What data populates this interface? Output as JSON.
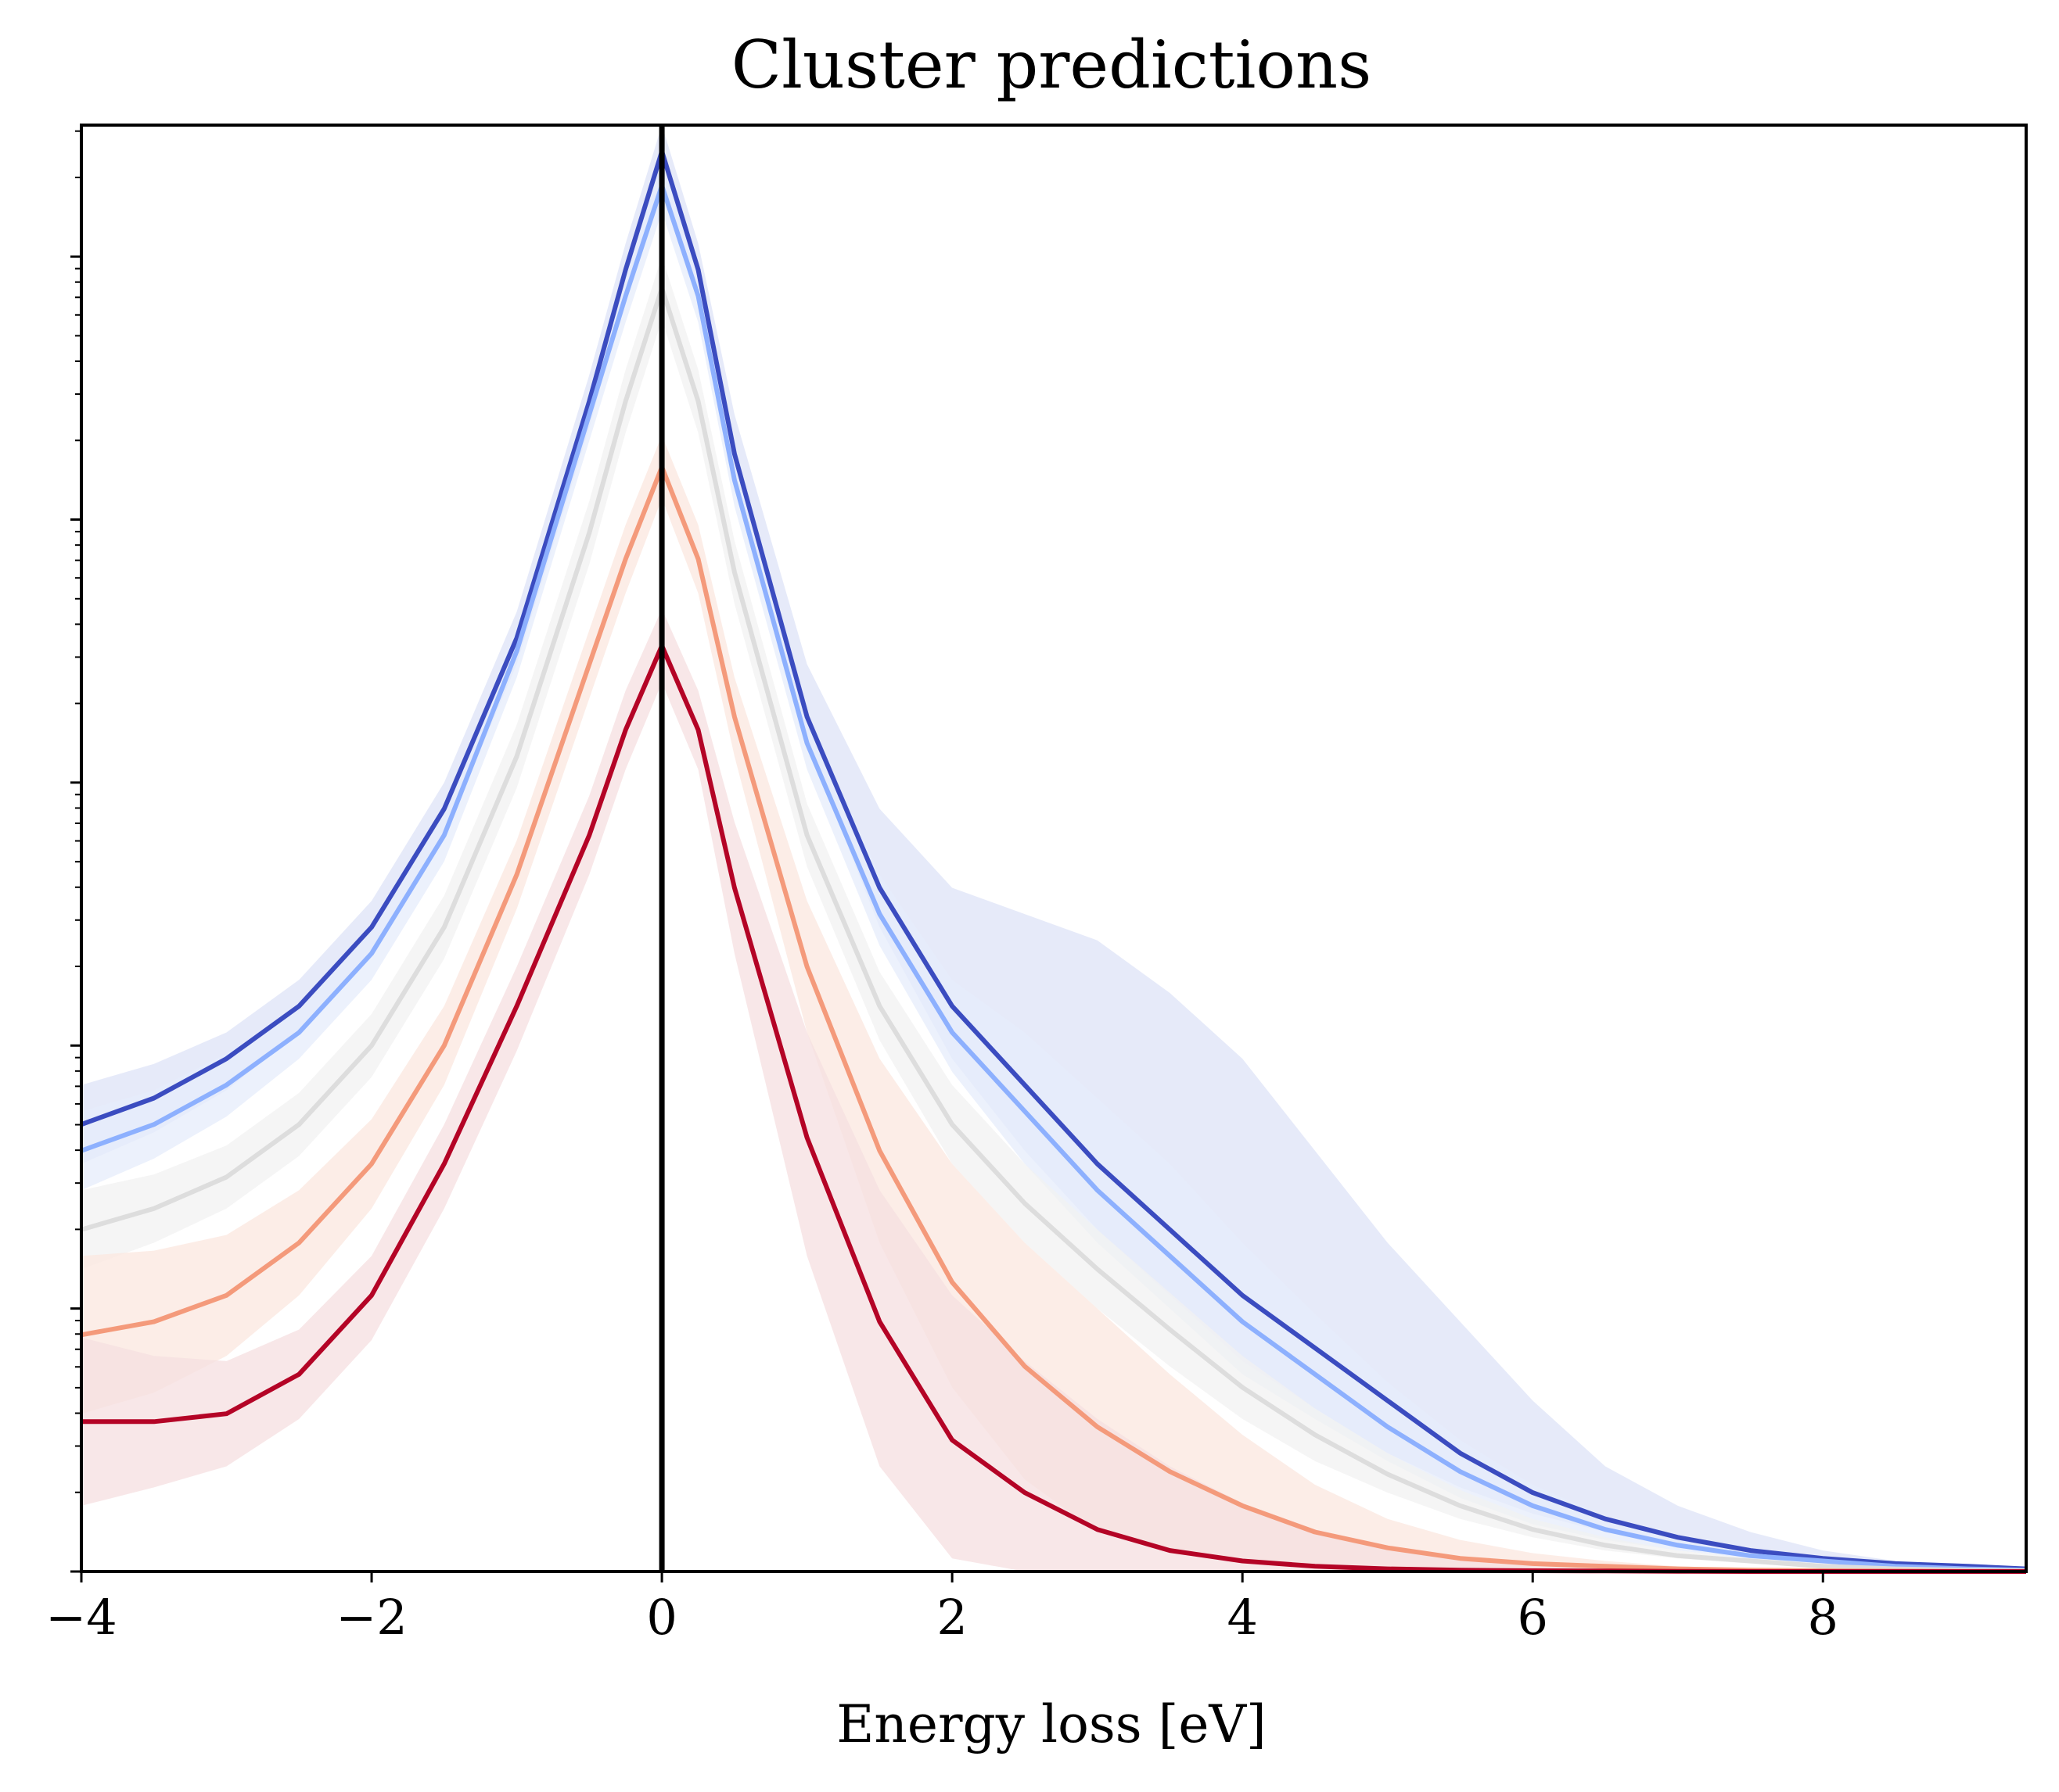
{
  "chart_data": {
    "type": "line",
    "title": "Cluster predictions",
    "xlabel": "Energy loss [eV]",
    "ylabel": "",
    "xlim": [
      -4,
      9.4
    ],
    "y_scale": "log",
    "ylim_decades": [
      0,
      5.5
    ],
    "x_ticks": [
      -4,
      -2,
      0,
      2,
      4,
      6,
      8
    ],
    "x_tick_labels": [
      "−4",
      "−2",
      "0",
      "2",
      "4",
      "6",
      "8"
    ],
    "y_tick_labels_shown": false,
    "vertical_line_x": 0,
    "grid": false,
    "legend": "none",
    "series": [
      {
        "color": "#3b4cc0",
        "band_color": "#dde3f7",
        "x": [
          -4,
          -3.5,
          -3,
          -2.5,
          -2,
          -1.5,
          -1,
          -0.5,
          -0.25,
          0,
          0.25,
          0.5,
          1,
          1.5,
          2,
          2.5,
          3,
          3.5,
          4,
          4.5,
          5,
          5.5,
          6,
          6.5,
          7,
          7.5,
          8,
          8.5,
          9,
          9.4
        ],
        "y": [
          1.7,
          1.8,
          1.95,
          2.15,
          2.45,
          2.9,
          3.55,
          4.45,
          4.95,
          5.4,
          4.95,
          4.25,
          3.25,
          2.6,
          2.15,
          1.85,
          1.55,
          1.3,
          1.05,
          0.85,
          0.65,
          0.45,
          0.3,
          0.2,
          0.13,
          0.08,
          0.05,
          0.03,
          0.02,
          0.01
        ],
        "lo": [
          1.55,
          1.67,
          1.83,
          2.05,
          2.35,
          2.8,
          3.45,
          4.35,
          4.85,
          5.3,
          4.85,
          4.15,
          3.15,
          2.45,
          1.95,
          1.6,
          1.3,
          1.05,
          0.8,
          0.62,
          0.45,
          0.32,
          0.22,
          0.15,
          0.1,
          0.07,
          0.04,
          0.02,
          0.01,
          0.005
        ],
        "hi": [
          1.85,
          1.93,
          2.05,
          2.25,
          2.55,
          3.0,
          3.65,
          4.55,
          5.05,
          5.5,
          5.05,
          4.4,
          3.45,
          2.9,
          2.6,
          2.5,
          2.4,
          2.2,
          1.95,
          1.6,
          1.25,
          0.95,
          0.65,
          0.4,
          0.25,
          0.15,
          0.08,
          0.04,
          0.02,
          0.01
        ]
      },
      {
        "color": "#8db0fe",
        "band_color": "#e5ecfb",
        "x": [
          -4,
          -3.5,
          -3,
          -2.5,
          -2,
          -1.5,
          -1,
          -0.5,
          -0.25,
          0,
          0.25,
          0.5,
          1,
          1.5,
          2,
          2.5,
          3,
          3.5,
          4,
          4.5,
          5,
          5.5,
          6,
          6.5,
          7,
          7.5,
          8,
          8.5,
          9,
          9.4
        ],
        "y": [
          1.6,
          1.7,
          1.85,
          2.05,
          2.35,
          2.8,
          3.5,
          4.4,
          4.85,
          5.27,
          4.85,
          4.15,
          3.15,
          2.5,
          2.05,
          1.75,
          1.45,
          1.2,
          0.95,
          0.75,
          0.55,
          0.38,
          0.25,
          0.16,
          0.1,
          0.06,
          0.04,
          0.02,
          0.01,
          0.005
        ],
        "lo": [
          1.45,
          1.57,
          1.73,
          1.95,
          2.25,
          2.7,
          3.4,
          4.3,
          4.75,
          5.17,
          4.75,
          4.05,
          3.05,
          2.38,
          1.9,
          1.55,
          1.25,
          1.0,
          0.75,
          0.58,
          0.42,
          0.28,
          0.18,
          0.12,
          0.08,
          0.05,
          0.03,
          0.015,
          0.008,
          0.004
        ],
        "hi": [
          1.75,
          1.83,
          1.97,
          2.15,
          2.45,
          2.9,
          3.6,
          4.5,
          4.95,
          5.37,
          4.95,
          4.25,
          3.25,
          2.65,
          2.25,
          2.05,
          1.8,
          1.55,
          1.25,
          0.98,
          0.72,
          0.5,
          0.33,
          0.21,
          0.13,
          0.08,
          0.05,
          0.025,
          0.012,
          0.006
        ]
      },
      {
        "color": "#dddddd",
        "band_color": "#f2f2f2",
        "x": [
          -4,
          -3.5,
          -3,
          -2.5,
          -2,
          -1.5,
          -1,
          -0.5,
          -0.25,
          0,
          0.25,
          0.5,
          1,
          1.5,
          2,
          2.5,
          3,
          3.5,
          4,
          4.5,
          5,
          5.5,
          6,
          6.5,
          7,
          7.5,
          8,
          8.5,
          9,
          9.4
        ],
        "y": [
          1.3,
          1.38,
          1.5,
          1.7,
          2.0,
          2.45,
          3.1,
          3.95,
          4.45,
          4.88,
          4.45,
          3.8,
          2.8,
          2.15,
          1.7,
          1.4,
          1.15,
          0.92,
          0.7,
          0.52,
          0.37,
          0.25,
          0.16,
          0.1,
          0.06,
          0.04,
          0.02,
          0.01,
          0.005,
          0.003
        ],
        "lo": [
          1.15,
          1.25,
          1.38,
          1.58,
          1.88,
          2.33,
          2.98,
          3.83,
          4.33,
          4.76,
          4.33,
          3.68,
          2.68,
          2.02,
          1.55,
          1.25,
          1.0,
          0.78,
          0.58,
          0.42,
          0.3,
          0.2,
          0.13,
          0.08,
          0.05,
          0.03,
          0.015,
          0.008,
          0.004,
          0.002
        ],
        "hi": [
          1.45,
          1.51,
          1.62,
          1.82,
          2.12,
          2.57,
          3.22,
          4.07,
          4.57,
          5.0,
          4.57,
          3.92,
          2.92,
          2.28,
          1.85,
          1.55,
          1.3,
          1.06,
          0.82,
          0.62,
          0.45,
          0.31,
          0.2,
          0.13,
          0.08,
          0.05,
          0.03,
          0.015,
          0.007,
          0.004
        ]
      },
      {
        "color": "#f49a7b",
        "band_color": "#fbe7df",
        "x": [
          -4,
          -3.5,
          -3,
          -2.5,
          -2,
          -1.5,
          -1,
          -0.5,
          -0.25,
          0,
          0.25,
          0.5,
          1,
          1.5,
          2,
          2.5,
          3,
          3.5,
          4,
          4.5,
          5,
          5.5,
          6,
          6.5,
          7,
          7.5,
          8,
          8.5,
          9,
          9.4
        ],
        "y": [
          0.9,
          0.95,
          1.05,
          1.25,
          1.55,
          2.0,
          2.65,
          3.45,
          3.85,
          4.2,
          3.85,
          3.25,
          2.3,
          1.6,
          1.1,
          0.78,
          0.55,
          0.38,
          0.25,
          0.15,
          0.09,
          0.05,
          0.03,
          0.02,
          0.01,
          0.005,
          0.003,
          0.002,
          0.001,
          0.001
        ],
        "lo": [
          0.6,
          0.68,
          0.82,
          1.05,
          1.38,
          1.85,
          2.52,
          3.32,
          3.72,
          4.08,
          3.72,
          3.1,
          2.05,
          1.25,
          0.7,
          0.35,
          0.15,
          0.08,
          0.04,
          0.02,
          0.01,
          0.005,
          0.003,
          0.002,
          0.001,
          0.0,
          0.0,
          0.0,
          0.0,
          0.0
        ],
        "hi": [
          1.2,
          1.22,
          1.28,
          1.45,
          1.72,
          2.15,
          2.78,
          3.58,
          3.98,
          4.32,
          3.98,
          3.4,
          2.55,
          1.95,
          1.55,
          1.25,
          1.0,
          0.75,
          0.52,
          0.33,
          0.2,
          0.12,
          0.07,
          0.04,
          0.02,
          0.01,
          0.006,
          0.003,
          0.002,
          0.001
        ]
      },
      {
        "color": "#b40426",
        "band_color": "#f6dfe0",
        "x": [
          -4,
          -3.5,
          -3,
          -2.5,
          -2,
          -1.5,
          -1,
          -0.5,
          -0.25,
          0,
          0.25,
          0.5,
          1,
          1.5,
          2,
          2.5,
          3,
          3.5,
          4,
          4.5,
          5,
          5.5,
          6,
          6.5,
          7,
          7.5,
          8,
          8.5,
          9,
          9.4
        ],
        "y": [
          0.57,
          0.57,
          0.6,
          0.75,
          1.05,
          1.55,
          2.15,
          2.8,
          3.2,
          3.52,
          3.2,
          2.6,
          1.65,
          0.95,
          0.5,
          0.3,
          0.16,
          0.08,
          0.04,
          0.02,
          0.01,
          0.005,
          0.003,
          0.002,
          0.001,
          0.0,
          0.0,
          0.0,
          0.0,
          0.0
        ],
        "lo": [
          0.25,
          0.32,
          0.4,
          0.58,
          0.88,
          1.38,
          1.98,
          2.65,
          3.05,
          3.38,
          3.05,
          2.35,
          1.2,
          0.4,
          0.05,
          0.0,
          0.0,
          0.0,
          0.0,
          0.0,
          0.0,
          0.0,
          0.0,
          0.0,
          0.0,
          0.0,
          0.0,
          0.0,
          0.0,
          0.0
        ],
        "hi": [
          0.89,
          0.82,
          0.8,
          0.92,
          1.2,
          1.7,
          2.3,
          2.95,
          3.35,
          3.66,
          3.35,
          2.85,
          2.05,
          1.45,
          1.05,
          0.8,
          0.58,
          0.4,
          0.26,
          0.16,
          0.09,
          0.05,
          0.03,
          0.02,
          0.01,
          0.005,
          0.003,
          0.002,
          0.001,
          0.0
        ]
      }
    ]
  }
}
